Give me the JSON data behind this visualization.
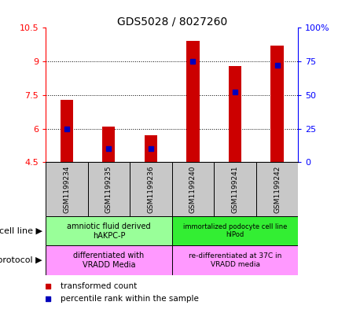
{
  "title": "GDS5028 / 8027260",
  "samples": [
    "GSM1199234",
    "GSM1199235",
    "GSM1199236",
    "GSM1199240",
    "GSM1199241",
    "GSM1199242"
  ],
  "red_values": [
    7.3,
    6.1,
    5.7,
    9.9,
    8.8,
    9.7
  ],
  "blue_values_pct": [
    25,
    10,
    10,
    75,
    52,
    72
  ],
  "ylim_left": [
    4.5,
    10.5
  ],
  "ylim_right": [
    0,
    100
  ],
  "yticks_left": [
    4.5,
    6.0,
    7.5,
    9.0,
    10.5
  ],
  "ytick_labels_left": [
    "4.5",
    "6",
    "7.5",
    "9",
    "10.5"
  ],
  "yticks_right": [
    0,
    25,
    50,
    75,
    100
  ],
  "ytick_labels_right": [
    "0",
    "25",
    "50",
    "75",
    "100%"
  ],
  "grid_yticks": [
    6.0,
    7.5,
    9.0
  ],
  "bar_bottom": 4.5,
  "cell_line_label1": "amniotic fluid derived\nhAKPC-P",
  "cell_line_color1": "#99FF99",
  "cell_line_label2": "immortalized podocyte cell line\nhIPod",
  "cell_line_color2": "#33EE33",
  "growth_label1": "differentiated with\nVRADD Media",
  "growth_color1": "#FF99FF",
  "growth_label2": "re-differentiated at 37C in\nVRADD media",
  "growth_color2": "#FF99FF",
  "legend_red_label": "transformed count",
  "legend_blue_label": "percentile rank within the sample",
  "cell_line_text": "cell line",
  "growth_protocol_text": "growth protocol",
  "bar_color": "#CC0000",
  "blue_color": "#0000BB",
  "bg_color": "#C8C8C8",
  "n_group1": 3,
  "n_group2": 3
}
